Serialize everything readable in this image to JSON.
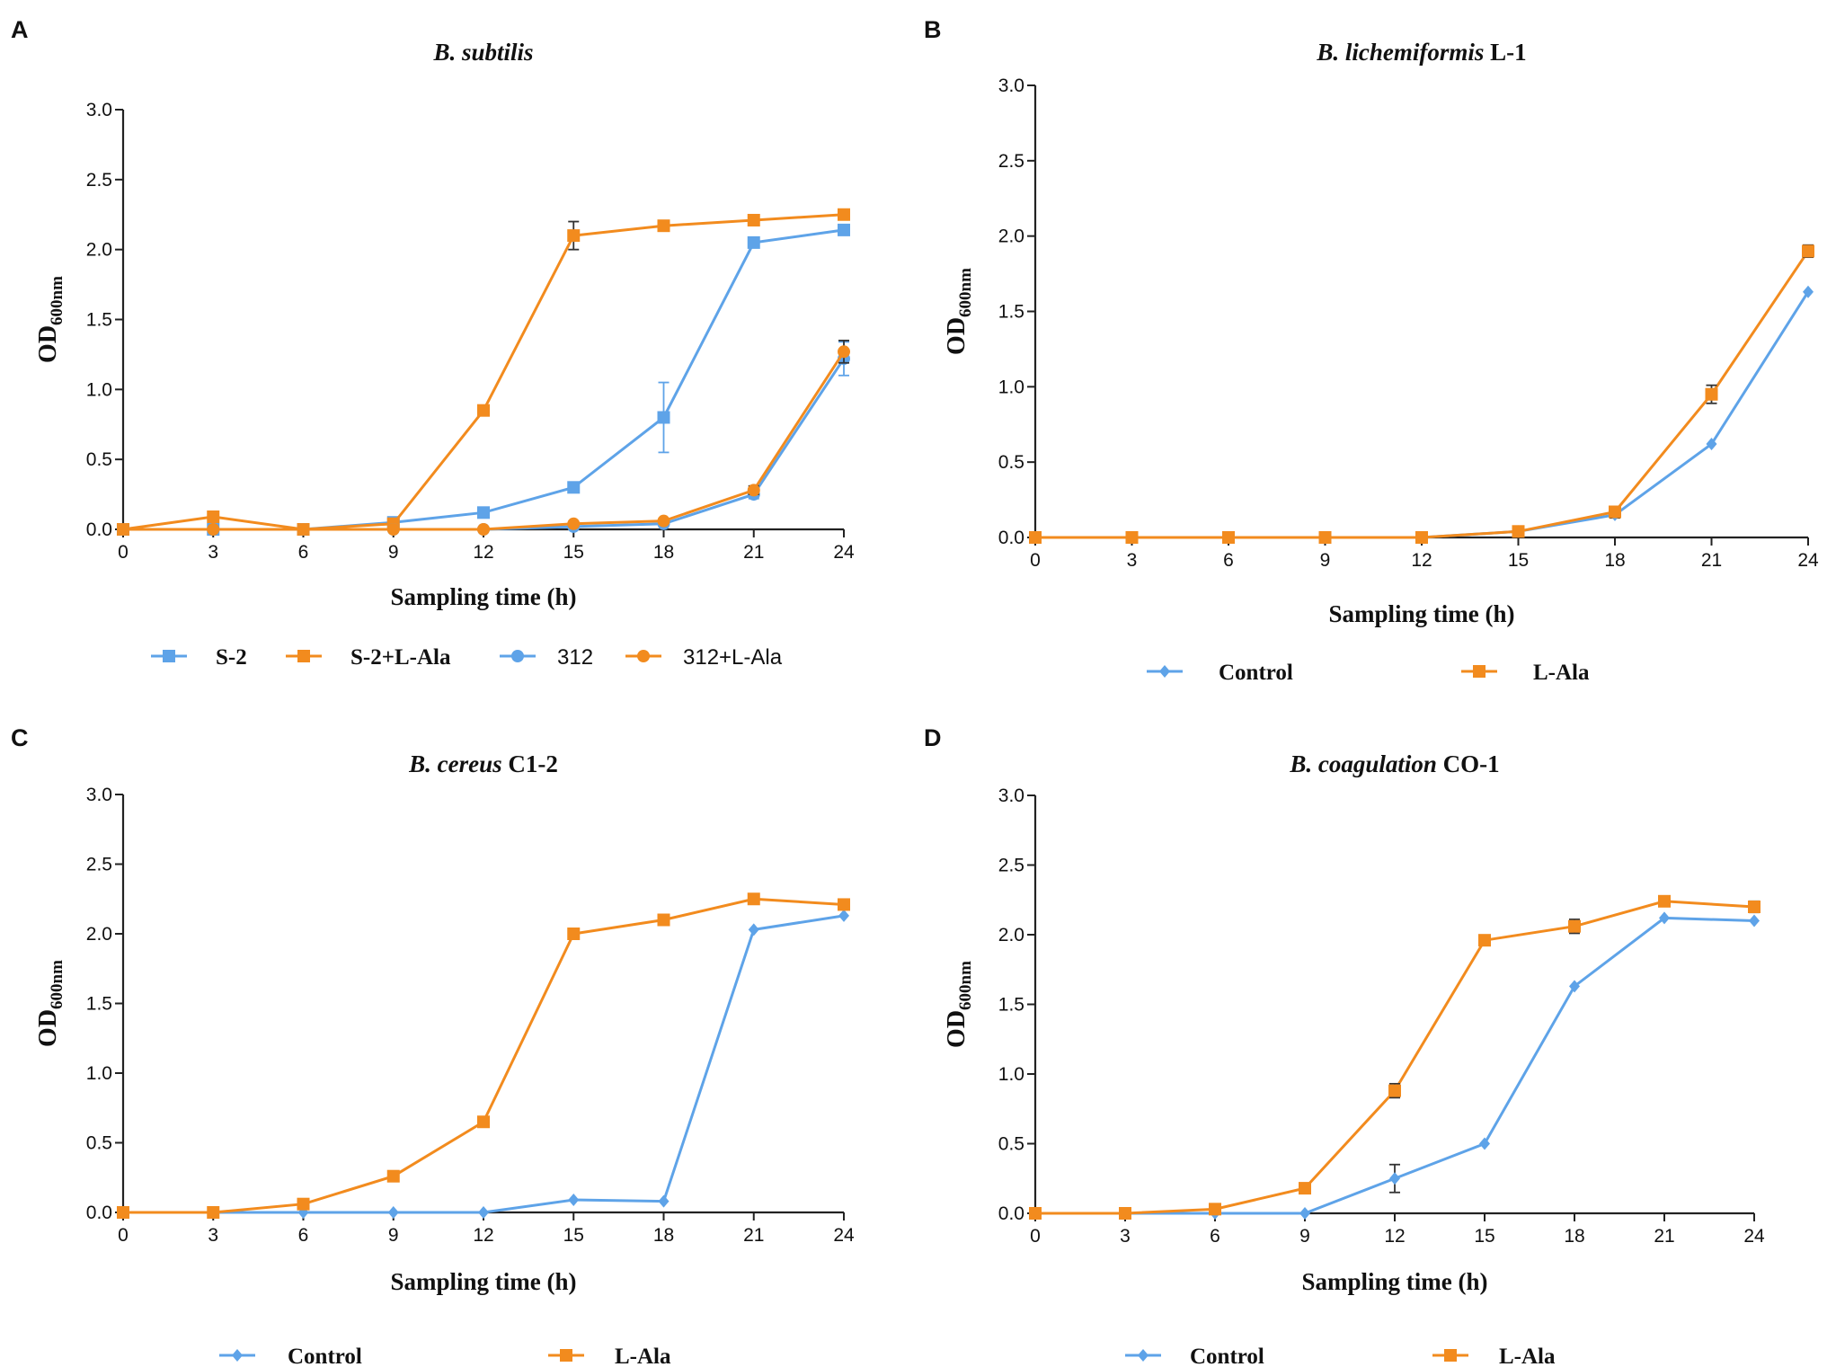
{
  "colors": {
    "blue": "#5ea3e8",
    "orange": "#f28b1e",
    "axis": "#222222",
    "error": "#333333"
  },
  "chart_data": [
    {
      "panel": "A",
      "type": "line",
      "title_italic": "B. subtilis",
      "title_rest": "",
      "xlabel": "Sampling time (h)",
      "ylabel_main": "OD",
      "ylabel_sub": "600nm",
      "x": [
        0,
        3,
        6,
        9,
        12,
        15,
        18,
        21,
        24
      ],
      "xlim": [
        0,
        24
      ],
      "ylim": [
        0,
        3.0
      ],
      "yticks": [
        "0.0",
        "0.5",
        "1.0",
        "1.5",
        "2.0",
        "2.5",
        "3.0"
      ],
      "legend_font": "serif",
      "series": [
        {
          "name": "S-2",
          "color": "blue",
          "marker": "square",
          "values": [
            0.0,
            0.0,
            0.0,
            0.05,
            0.12,
            0.3,
            0.8,
            2.05,
            2.14
          ],
          "errors": [
            0,
            0,
            0,
            0,
            0,
            0,
            0.25,
            0,
            0
          ],
          "error_color": "blue",
          "legend_font": "serif"
        },
        {
          "name": "S-2+L-Ala",
          "color": "orange",
          "marker": "square",
          "values": [
            0.0,
            0.09,
            0.0,
            0.04,
            0.85,
            2.1,
            2.17,
            2.21,
            2.25
          ],
          "errors": [
            0,
            0,
            0,
            0,
            0,
            0.1,
            0,
            0,
            0
          ],
          "error_color": "error",
          "legend_font": "serif"
        },
        {
          "name": "312",
          "color": "blue",
          "marker": "circle",
          "values": [
            0.0,
            0.0,
            0.0,
            0.0,
            0.0,
            0.02,
            0.04,
            0.25,
            1.22
          ],
          "errors": [
            0,
            0,
            0,
            0,
            0,
            0,
            0,
            0.03,
            0.12
          ],
          "error_color": "blue",
          "legend_font": "sans"
        },
        {
          "name": "312+L-Ala",
          "color": "orange",
          "marker": "circle",
          "values": [
            0.0,
            0.0,
            0.0,
            0.0,
            0.0,
            0.04,
            0.06,
            0.28,
            1.27
          ],
          "errors": [
            0,
            0,
            0,
            0,
            0,
            0,
            0,
            0.03,
            0.08
          ],
          "error_color": "error",
          "legend_font": "sans"
        }
      ]
    },
    {
      "panel": "B",
      "type": "line",
      "title_italic": "B. lichemiformis",
      "title_rest": " L-1",
      "xlabel": "Sampling time (h)",
      "ylabel_main": "OD",
      "ylabel_sub": "600nm",
      "x": [
        0,
        3,
        6,
        9,
        12,
        15,
        18,
        21,
        24
      ],
      "xlim": [
        0,
        24
      ],
      "ylim": [
        0,
        3.0
      ],
      "yticks": [
        "0.0",
        "0.5",
        "1.0",
        "1.5",
        "2.0",
        "2.5",
        "3.0"
      ],
      "series": [
        {
          "name": "Control",
          "color": "blue",
          "marker": "diamond",
          "values": [
            0.0,
            0.0,
            0.0,
            0.0,
            0.0,
            0.04,
            0.15,
            0.62,
            1.63
          ],
          "errors": [
            0,
            0,
            0,
            0,
            0,
            0,
            0.02,
            0,
            0
          ],
          "error_color": "error",
          "legend_font": "serif"
        },
        {
          "name": "L-Ala",
          "color": "orange",
          "marker": "square",
          "values": [
            0.0,
            0.0,
            0.0,
            0.0,
            0.0,
            0.04,
            0.17,
            0.95,
            1.9
          ],
          "errors": [
            0,
            0,
            0,
            0,
            0,
            0,
            0.02,
            0.06,
            0.04
          ],
          "error_color": "error",
          "legend_font": "serif"
        }
      ]
    },
    {
      "panel": "C",
      "type": "line",
      "title_italic": "B. cereus",
      "title_rest": " C1-2",
      "xlabel": "Sampling time (h)",
      "ylabel_main": "OD",
      "ylabel_sub": "600nm",
      "x": [
        0,
        3,
        6,
        9,
        12,
        15,
        18,
        21,
        24
      ],
      "xlim": [
        0,
        24
      ],
      "ylim": [
        0,
        3.0
      ],
      "yticks": [
        "0.0",
        "0.5",
        "1.0",
        "1.5",
        "2.0",
        "2.5",
        "3.0"
      ],
      "series": [
        {
          "name": "Control",
          "color": "blue",
          "marker": "diamond",
          "values": [
            0.0,
            0.0,
            0.0,
            0.0,
            0.0,
            0.09,
            0.08,
            2.03,
            2.13
          ],
          "errors": [
            0,
            0,
            0,
            0,
            0,
            0,
            0,
            0,
            0
          ],
          "error_color": "error",
          "legend_font": "serif"
        },
        {
          "name": "L-Ala",
          "color": "orange",
          "marker": "square",
          "values": [
            0.0,
            0.0,
            0.06,
            0.26,
            0.65,
            2.0,
            2.1,
            2.25,
            2.21
          ],
          "errors": [
            0,
            0,
            0,
            0,
            0,
            0,
            0,
            0,
            0
          ],
          "error_color": "error",
          "legend_font": "serif"
        }
      ]
    },
    {
      "panel": "D",
      "type": "line",
      "title_italic": "B. coagulation",
      "title_rest": " CO-1",
      "xlabel": "Sampling time (h)",
      "ylabel_main": "OD",
      "ylabel_sub": "600nm",
      "x": [
        0,
        3,
        6,
        9,
        12,
        15,
        18,
        21,
        24
      ],
      "xlim": [
        0,
        24
      ],
      "ylim": [
        0,
        3.0
      ],
      "yticks": [
        "0.0",
        "0.5",
        "1.0",
        "1.5",
        "2.0",
        "2.5",
        "3.0"
      ],
      "series": [
        {
          "name": "Control",
          "color": "blue",
          "marker": "diamond",
          "values": [
            0.0,
            0.0,
            0.0,
            0.0,
            0.25,
            0.5,
            1.63,
            2.12,
            2.1
          ],
          "errors": [
            0,
            0,
            0,
            0,
            0.1,
            0,
            0,
            0,
            0
          ],
          "error_color": "error",
          "legend_font": "serif"
        },
        {
          "name": "L-Ala",
          "color": "orange",
          "marker": "square",
          "values": [
            0.0,
            0.0,
            0.03,
            0.18,
            0.88,
            1.96,
            2.06,
            2.24,
            2.2
          ],
          "errors": [
            0,
            0,
            0,
            0,
            0.05,
            0,
            0.05,
            0,
            0.04
          ],
          "error_color": "error",
          "legend_font": "serif"
        }
      ]
    }
  ]
}
